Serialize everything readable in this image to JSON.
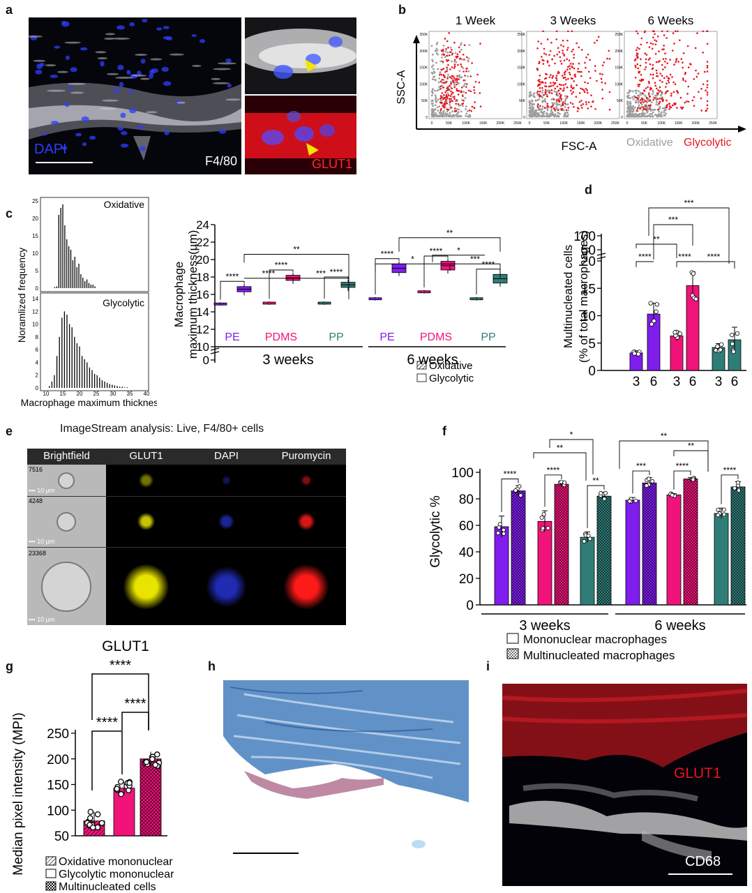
{
  "panels": {
    "a": "a",
    "b": "b",
    "c": "c",
    "d": "d",
    "e": "e",
    "f": "f",
    "g": "g",
    "h": "h",
    "i": "i"
  },
  "colors": {
    "pe": "#7f1ded",
    "pdms": "#f0137a",
    "pp": "#2f7d77",
    "glycolytic_red": "#e8141e",
    "oxidative_gray": "#9e9e9e",
    "dapi_blue": "#2d3dff",
    "glut1_yellow": "#e8e400"
  },
  "panel_a": {
    "dapi": "DAPI",
    "f480": "F4/80",
    "glut1": "GLUT1"
  },
  "panel_b": {
    "titles": [
      "1 Week",
      "3 Weeks",
      "6 Weeks"
    ],
    "ylabel": "SSC-A",
    "xlabel": "FSC-A",
    "legend_oxidative": "Oxidative",
    "legend_glycolytic": "Glycolytic",
    "yticks": [
      "250K",
      "200K",
      "150K",
      "100K",
      "50K",
      "0"
    ],
    "xticks": [
      "0",
      "50K",
      "100K",
      "150K",
      "200K",
      "250K"
    ]
  },
  "panel_c_hist": {
    "ylabel": "Noramlized frequency",
    "xlabel": "Macrophage maximum thickness",
    "top_title": "Oxidative",
    "bottom_title": "Glycolytic",
    "top_yticks": [
      "25",
      "20",
      "15",
      "10",
      "5",
      "0"
    ],
    "bottom_yticks": [
      "14",
      "12",
      "10",
      "8",
      "6",
      "4",
      "2",
      "0"
    ],
    "xticks": [
      "10",
      "15",
      "20",
      "25",
      "30",
      "35",
      "40"
    ]
  },
  "panel_c_box": {
    "ylabel1": "Macrophage",
    "ylabel2": "maximum thickness(µm)",
    "yticks": [
      "24",
      "22",
      "20",
      "18",
      "16",
      "14",
      "12",
      "10",
      "0"
    ],
    "groups": [
      "PE",
      "PDMS",
      "PP",
      "PE",
      "PDMS",
      "PP"
    ],
    "time_labels": [
      "3 weeks",
      "6 weeks"
    ],
    "legend": [
      "Oxidative",
      "Glycolytic"
    ],
    "sig": [
      "****",
      "****",
      "****",
      "****",
      "***",
      "**",
      "****",
      "****",
      "****",
      "*",
      "*",
      "***",
      "**"
    ]
  },
  "panel_d": {
    "ylabel1": "Multinucleated cells",
    "ylabel2": "(% of total macrophages)",
    "yticks": [
      "100",
      "50",
      "20",
      "15",
      "10",
      "5",
      "0"
    ],
    "xticks": [
      "3",
      "6",
      "3",
      "6",
      "3",
      "6"
    ],
    "sig": [
      "****",
      "**",
      "***",
      "***",
      "****",
      "****"
    ]
  },
  "panel_e": {
    "title": "ImageStream analysis: Live, F4/80+ cells",
    "columns": [
      "Brightfield",
      "GLUT1",
      "DAPI",
      "Puromycin"
    ],
    "ids": [
      "7516",
      "4248",
      "23368"
    ],
    "scale": "10 µm"
  },
  "panel_f": {
    "ylabel": "Glycolytic %",
    "yticks": [
      "100",
      "80",
      "60",
      "40",
      "20",
      "0"
    ],
    "time_labels": [
      "3 weeks",
      "6 weeks"
    ],
    "legend": [
      "Mononuclear macrophages",
      "Multinucleated macrophages"
    ],
    "sig": [
      "****",
      "****",
      "****",
      "**",
      "*",
      "***",
      "**",
      "****",
      "****",
      "**"
    ]
  },
  "panel_g": {
    "title": "GLUT1",
    "ylabel": "Median pixel intensity (MPI)",
    "yticks": [
      "250",
      "200",
      "150",
      "100",
      "50"
    ],
    "sig": [
      "****",
      "****",
      "****"
    ],
    "legend": [
      "Oxidative mononuclear",
      "Glycolytic mononuclear",
      "Multinucleated cells"
    ]
  },
  "panel_i": {
    "glut1": "GLUT1",
    "cd68": "CD68"
  },
  "chart_data": [
    {
      "type": "bar",
      "id": "d",
      "ylabel": "Multinucleated cells (% of total macrophages)",
      "categories": [
        "PE 3",
        "PE 6",
        "PDMS 3",
        "PDMS 6",
        "PP 3",
        "PP 6"
      ],
      "values": [
        3.2,
        10.3,
        6.3,
        15.5,
        4.2,
        5.6
      ],
      "errors": [
        0.4,
        2.0,
        0.9,
        2.5,
        0.7,
        2.3
      ],
      "ylim": [
        0,
        100
      ]
    },
    {
      "type": "bar",
      "id": "f",
      "ylabel": "Glycolytic %",
      "categories": [
        "PE 3w",
        "PDMS 3w",
        "PP 3w",
        "PE 6w",
        "PDMS 6w",
        "PP 6w"
      ],
      "series": [
        {
          "name": "Mononuclear macrophages",
          "values": [
            59,
            63,
            51,
            79,
            83,
            69
          ],
          "errors": [
            8,
            8,
            4,
            2,
            1,
            4
          ]
        },
        {
          "name": "Multinucleated macrophages",
          "values": [
            86,
            91,
            82,
            92,
            95,
            89
          ],
          "errors": [
            4,
            2,
            3,
            4,
            1,
            4
          ]
        }
      ],
      "ylim": [
        0,
        100
      ]
    },
    {
      "type": "bar",
      "id": "g",
      "title": "GLUT1",
      "ylabel": "Median pixel intensity (MPI)",
      "categories": [
        "Oxidative mononuclear",
        "Glycolytic mononuclear",
        "Multinucleated cells"
      ],
      "values": [
        79,
        143,
        200
      ],
      "errors": [
        18,
        12,
        14
      ],
      "ylim": [
        50,
        250
      ]
    },
    {
      "type": "box",
      "id": "c",
      "ylabel": "Macrophage maximum thickness(µm)",
      "categories": [
        "PE 3w",
        "PDMS 3w",
        "PP 3w",
        "PE 6w",
        "PDMS 6w",
        "PP 6w"
      ],
      "series": [
        {
          "name": "Oxidative",
          "medians": [
            14.9,
            15.0,
            15.0,
            15.5,
            16.3,
            15.5
          ]
        },
        {
          "name": "Glycolytic",
          "medians": [
            16.6,
            17.9,
            17.1,
            19.0,
            19.3,
            17.8
          ]
        }
      ],
      "ylim": [
        10,
        24
      ]
    }
  ]
}
